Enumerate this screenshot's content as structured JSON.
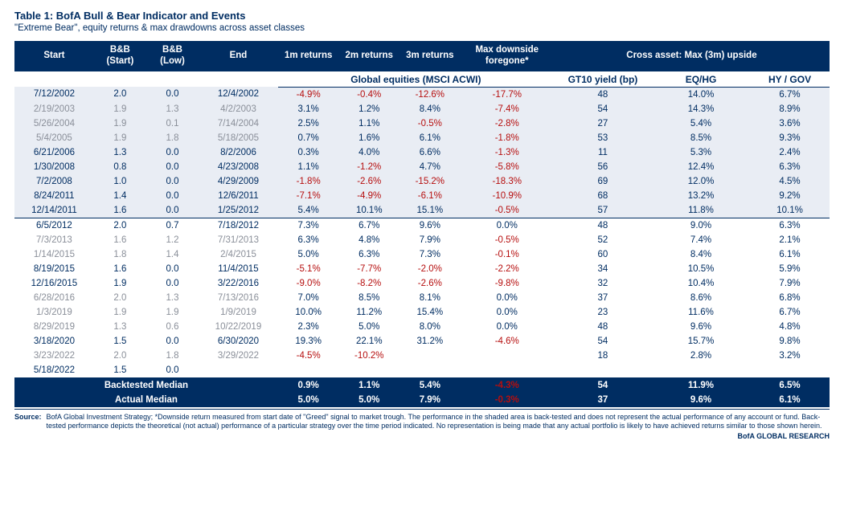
{
  "title": "Table 1: BofA Bull & Bear Indicator and Events",
  "subtitle": "\"Extreme Bear\", equity returns & max drawdowns across asset classes",
  "superHeaders": {
    "global_eq": "Global equities (MSCI ACWI)",
    "gt10": "GT10 yield (bp)",
    "eqhg": "EQ/HG",
    "hygov": "HY / GOV"
  },
  "headers": {
    "start": "Start",
    "bb_start": "B&B (Start)",
    "bb_low": "B&B (Low)",
    "end": "End",
    "r1m": "1m returns",
    "r2m": "2m returns",
    "r3m": "3m returns",
    "maxd": "Max downside foregone*",
    "cross": "Cross asset: Max (3m) upside"
  },
  "colors": {
    "neg": "#b60e0e",
    "pos": "#002d62",
    "neutral": "#8a8f99",
    "header_bg": "#002d62",
    "band_bg": "#e9edf4"
  },
  "rows": [
    {
      "band": "backtest",
      "cells": [
        "7/12/2002",
        "2.0",
        "0.0",
        "12/4/2002",
        "-4.9%",
        "-0.4%",
        "-12.6%",
        "-17.7%",
        "48",
        "14.0%",
        "6.7%"
      ]
    },
    {
      "band": "backtest",
      "cells": [
        "2/19/2003",
        "1.9",
        "1.3",
        "4/2/2003",
        "3.1%",
        "1.2%",
        "8.4%",
        "-7.4%",
        "54",
        "14.3%",
        "8.9%"
      ],
      "muted": true
    },
    {
      "band": "backtest",
      "cells": [
        "5/26/2004",
        "1.9",
        "0.1",
        "7/14/2004",
        "2.5%",
        "1.1%",
        "-0.5%",
        "-2.8%",
        "27",
        "5.4%",
        "3.6%"
      ],
      "muted": true
    },
    {
      "band": "backtest",
      "cells": [
        "5/4/2005",
        "1.9",
        "1.8",
        "5/18/2005",
        "0.7%",
        "1.6%",
        "6.1%",
        "-1.8%",
        "53",
        "8.5%",
        "9.3%"
      ],
      "muted": true
    },
    {
      "band": "backtest",
      "cells": [
        "6/21/2006",
        "1.3",
        "0.0",
        "8/2/2006",
        "0.3%",
        "4.0%",
        "6.6%",
        "-1.3%",
        "11",
        "5.3%",
        "2.4%"
      ]
    },
    {
      "band": "backtest",
      "cells": [
        "1/30/2008",
        "0.8",
        "0.0",
        "4/23/2008",
        "1.1%",
        "-1.2%",
        "4.7%",
        "-5.8%",
        "56",
        "12.4%",
        "6.3%"
      ]
    },
    {
      "band": "backtest",
      "cells": [
        "7/2/2008",
        "1.0",
        "0.0",
        "4/29/2009",
        "-1.8%",
        "-2.6%",
        "-15.2%",
        "-18.3%",
        "69",
        "12.0%",
        "4.5%"
      ]
    },
    {
      "band": "backtest",
      "cells": [
        "8/24/2011",
        "1.4",
        "0.0",
        "12/6/2011",
        "-7.1%",
        "-4.9%",
        "-6.1%",
        "-10.9%",
        "68",
        "13.2%",
        "9.2%"
      ]
    },
    {
      "band": "backtest",
      "cells": [
        "12/14/2011",
        "1.6",
        "0.0",
        "1/25/2012",
        "5.4%",
        "10.1%",
        "15.1%",
        "-0.5%",
        "57",
        "11.8%",
        "10.1%"
      ]
    },
    {
      "band": "actual",
      "divider": true,
      "cells": [
        "6/5/2012",
        "2.0",
        "0.7",
        "7/18/2012",
        "7.3%",
        "6.7%",
        "9.6%",
        "0.0%",
        "48",
        "9.0%",
        "6.3%"
      ]
    },
    {
      "band": "actual",
      "cells": [
        "7/3/2013",
        "1.6",
        "1.2",
        "7/31/2013",
        "6.3%",
        "4.8%",
        "7.9%",
        "-0.5%",
        "52",
        "7.4%",
        "2.1%"
      ],
      "muted": true
    },
    {
      "band": "actual",
      "cells": [
        "1/14/2015",
        "1.8",
        "1.4",
        "2/4/2015",
        "5.0%",
        "6.3%",
        "7.3%",
        "-0.1%",
        "60",
        "8.4%",
        "6.1%"
      ],
      "muted": true
    },
    {
      "band": "actual",
      "cells": [
        "8/19/2015",
        "1.6",
        "0.0",
        "11/4/2015",
        "-5.1%",
        "-7.7%",
        "-2.0%",
        "-2.2%",
        "34",
        "10.5%",
        "5.9%"
      ]
    },
    {
      "band": "actual",
      "cells": [
        "12/16/2015",
        "1.9",
        "0.0",
        "3/22/2016",
        "-9.0%",
        "-8.2%",
        "-2.6%",
        "-9.8%",
        "32",
        "10.4%",
        "7.9%"
      ]
    },
    {
      "band": "actual",
      "cells": [
        "6/28/2016",
        "2.0",
        "1.3",
        "7/13/2016",
        "7.0%",
        "8.5%",
        "8.1%",
        "0.0%",
        "37",
        "8.6%",
        "6.8%"
      ],
      "muted": true
    },
    {
      "band": "actual",
      "cells": [
        "1/3/2019",
        "1.9",
        "1.9",
        "1/9/2019",
        "10.0%",
        "11.2%",
        "15.4%",
        "0.0%",
        "23",
        "11.6%",
        "6.7%"
      ],
      "muted": true
    },
    {
      "band": "actual",
      "cells": [
        "8/29/2019",
        "1.3",
        "0.6",
        "10/22/2019",
        "2.3%",
        "5.0%",
        "8.0%",
        "0.0%",
        "48",
        "9.6%",
        "4.8%"
      ],
      "muted": true
    },
    {
      "band": "actual",
      "cells": [
        "3/18/2020",
        "1.5",
        "0.0",
        "6/30/2020",
        "19.3%",
        "22.1%",
        "31.2%",
        "-4.6%",
        "54",
        "15.7%",
        "9.8%"
      ]
    },
    {
      "band": "actual",
      "cells": [
        "3/23/2022",
        "2.0",
        "1.8",
        "3/29/2022",
        "-4.5%",
        "-10.2%",
        "",
        "",
        "18",
        "2.8%",
        "3.2%"
      ],
      "muted": true
    },
    {
      "band": "actual",
      "cells": [
        "5/18/2022",
        "1.5",
        "0.0",
        "",
        "",
        "",
        "",
        "",
        "",
        "",
        ""
      ]
    }
  ],
  "summary": [
    {
      "label": "Backtested Median",
      "cells": [
        "0.9%",
        "1.1%",
        "5.4%",
        "-4.3%",
        "54",
        "11.9%",
        "6.5%"
      ]
    },
    {
      "label": "Actual Median",
      "cells": [
        "5.0%",
        "5.0%",
        "7.9%",
        "-0.3%",
        "37",
        "9.6%",
        "6.1%"
      ]
    }
  ],
  "footnote_label": "Source:",
  "footnote": "BofA Global Investment Strategy; *Downside return measured from start date of \"Greed\" signal to market trough. The performance in the shaded area is back-tested and does not represent the actual performance of any account or fund. Back-tested performance depicts the theoretical (not actual) performance of a particular strategy over the time period indicated. No representation is being made that any actual portfolio is likely to have achieved returns similar to those shown herein.",
  "brand": "BofA GLOBAL RESEARCH"
}
